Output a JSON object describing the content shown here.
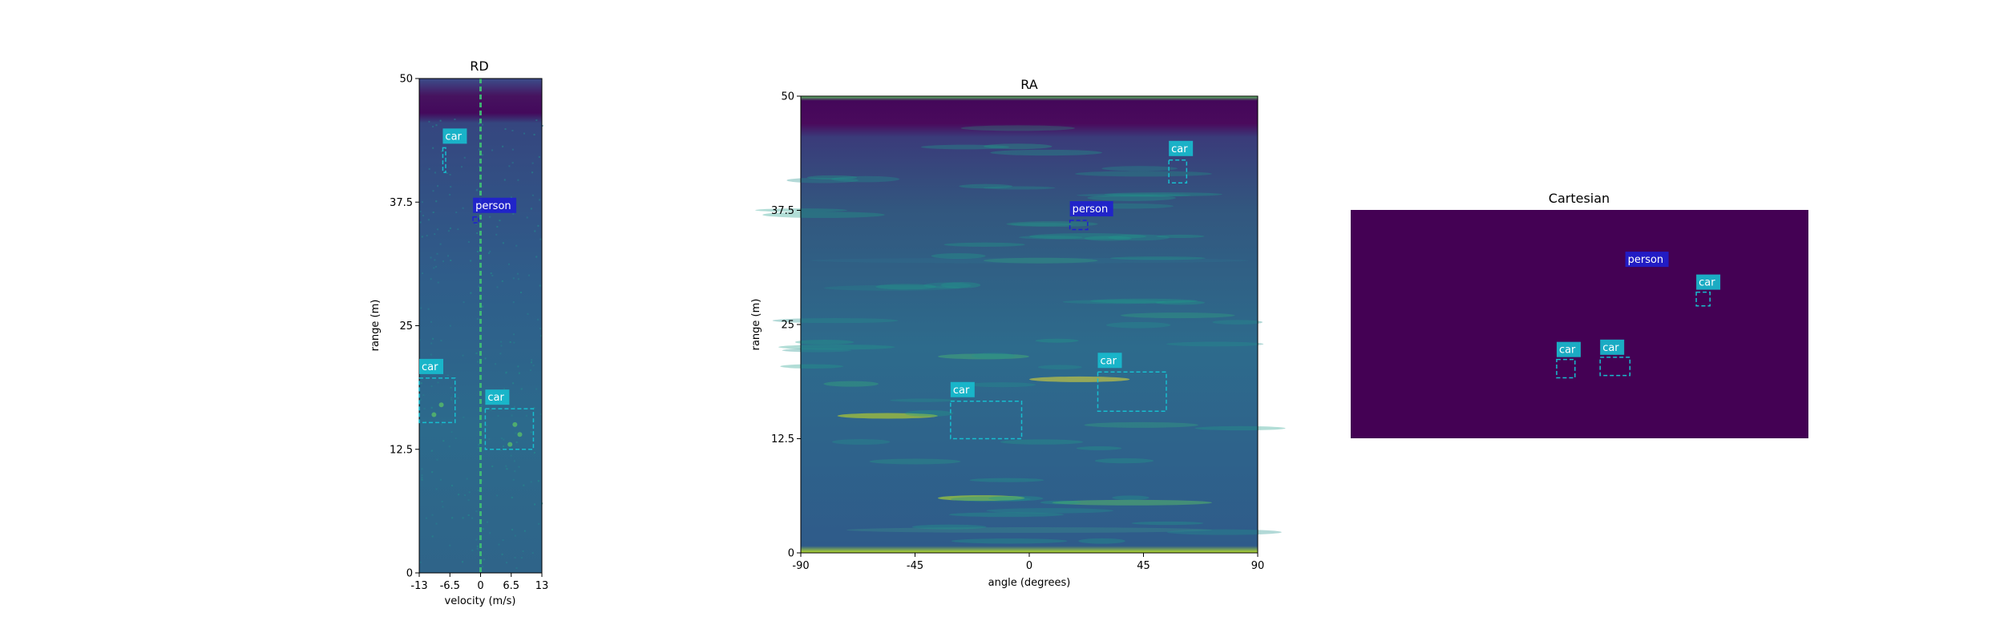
{
  "chart_data": [
    {
      "type": "heatmap",
      "title": "RD",
      "xlabel": "velocity (m/s)",
      "ylabel": "range (m)",
      "xlim": [
        -13,
        13
      ],
      "ylim": [
        0,
        50
      ],
      "xticks": [
        -13,
        -6.5,
        0,
        6.5,
        13
      ],
      "xtick_labels": [
        "-13",
        "-6.5",
        "0",
        "6.5",
        "13"
      ],
      "yticks": [
        0,
        12.5,
        25,
        37.5,
        50
      ],
      "ytick_labels": [
        "0",
        "12.5",
        "25",
        "37.5",
        "50"
      ],
      "colormap": "viridis",
      "annotations": [
        {
          "label": "car",
          "color": "#17becf",
          "box": {
            "x0": -8.0,
            "x1": -7.4,
            "y0": 40.5,
            "y1": 43.0
          }
        },
        {
          "label": "person",
          "color": "#1f1fd0",
          "box": {
            "x0": -1.6,
            "x1": -0.4,
            "y0": 35.4,
            "y1": 36.0
          }
        },
        {
          "label": "car",
          "color": "#17becf",
          "box": {
            "x0": -13.0,
            "x1": -5.4,
            "y0": 15.2,
            "y1": 19.7
          }
        },
        {
          "label": "car",
          "color": "#17becf",
          "box": {
            "x0": 1.0,
            "x1": 11.2,
            "y0": 12.5,
            "y1": 16.6
          }
        }
      ]
    },
    {
      "type": "heatmap",
      "title": "RA",
      "xlabel": "angle (degrees)",
      "ylabel": "range (m)",
      "xlim": [
        -90,
        90
      ],
      "ylim": [
        0,
        50
      ],
      "xticks": [
        -90,
        -45,
        0,
        45,
        90
      ],
      "xtick_labels": [
        "-90",
        "-45",
        "0",
        "45",
        "90"
      ],
      "yticks": [
        0,
        12.5,
        25,
        37.5,
        50
      ],
      "ytick_labels": [
        "0",
        "12.5",
        "25",
        "37.5",
        "50"
      ],
      "colormap": "viridis",
      "annotations": [
        {
          "label": "car",
          "color": "#17becf",
          "box": {
            "x0": 55,
            "x1": 62,
            "y0": 40.5,
            "y1": 43.0
          }
        },
        {
          "label": "person",
          "color": "#1f1fd0",
          "box": {
            "x0": 16,
            "x1": 23,
            "y0": 35.4,
            "y1": 36.4
          }
        },
        {
          "label": "car",
          "color": "#17becf",
          "box": {
            "x0": 27,
            "x1": 54,
            "y0": 15.5,
            "y1": 19.8
          }
        },
        {
          "label": "car",
          "color": "#17becf",
          "box": {
            "x0": -31,
            "x1": -3,
            "y0": 12.5,
            "y1": 16.6
          }
        }
      ]
    },
    {
      "type": "heatmap",
      "title": "Cartesian",
      "background": "#440154",
      "annotations": [
        {
          "label": "person",
          "color": "#1f1fd0",
          "box": null,
          "pos": [
            0.6,
            0.26
          ]
        },
        {
          "label": "car",
          "color": "#17becf",
          "box": [
            0.755,
            0.36,
            0.785,
            0.42
          ]
        },
        {
          "label": "car",
          "color": "#17becf",
          "box": [
            0.45,
            0.655,
            0.49,
            0.735
          ]
        },
        {
          "label": "car",
          "color": "#17becf",
          "box": [
            0.545,
            0.645,
            0.61,
            0.725
          ]
        }
      ]
    }
  ]
}
